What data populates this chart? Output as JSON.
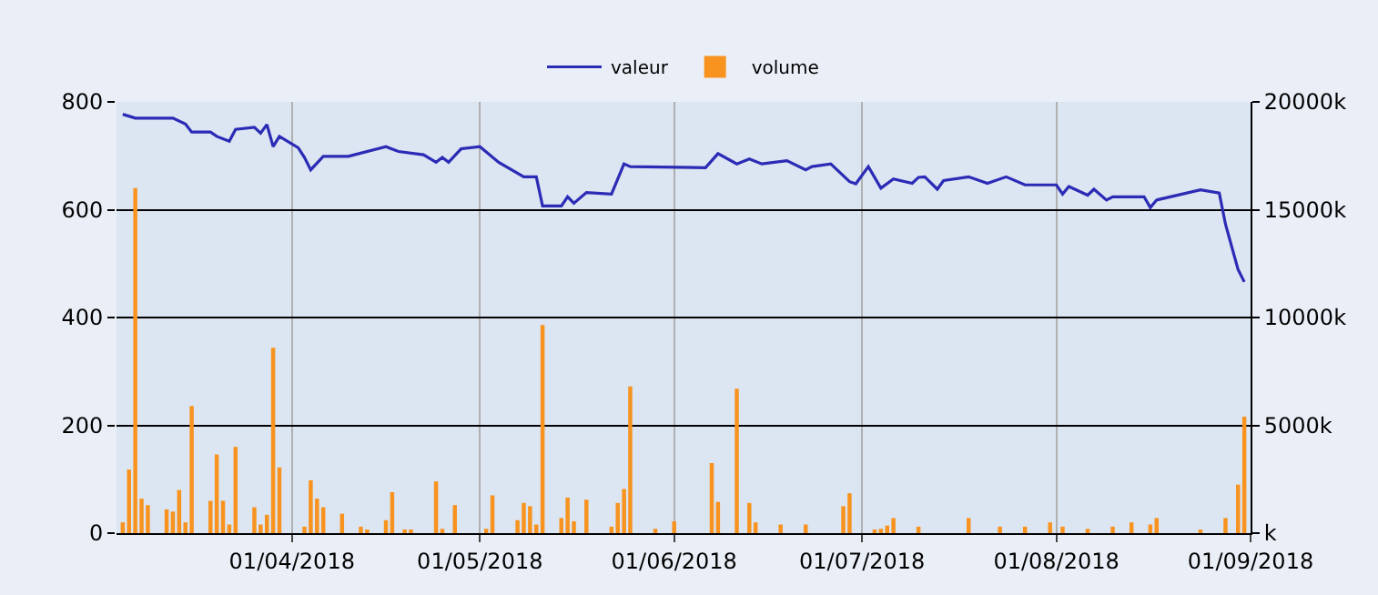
{
  "chart_data": {
    "type": "line",
    "series": [
      {
        "name": "valeur",
        "color": "#2b2bb5",
        "x": [
          "2018-03-05",
          "2018-03-07",
          "2018-03-13",
          "2018-03-15",
          "2018-03-16",
          "2018-03-19",
          "2018-03-20",
          "2018-03-22",
          "2018-03-23",
          "2018-03-26",
          "2018-03-27",
          "2018-03-28",
          "2018-03-29",
          "2018-03-30",
          "2018-04-02",
          "2018-04-03",
          "2018-04-04",
          "2018-04-06",
          "2018-04-10",
          "2018-04-16",
          "2018-04-18",
          "2018-04-22",
          "2018-04-24",
          "2018-04-25",
          "2018-04-26",
          "2018-04-28",
          "2018-05-01",
          "2018-05-04",
          "2018-05-08",
          "2018-05-10",
          "2018-05-11",
          "2018-05-14",
          "2018-05-15",
          "2018-05-16",
          "2018-05-18",
          "2018-05-22",
          "2018-05-24",
          "2018-05-25",
          "2018-06-06",
          "2018-06-08",
          "2018-06-11",
          "2018-06-13",
          "2018-06-15",
          "2018-06-19",
          "2018-06-22",
          "2018-06-23",
          "2018-06-26",
          "2018-06-29",
          "2018-06-30",
          "2018-07-02",
          "2018-07-04",
          "2018-07-06",
          "2018-07-09",
          "2018-07-10",
          "2018-07-11",
          "2018-07-13",
          "2018-07-14",
          "2018-07-18",
          "2018-07-21",
          "2018-07-24",
          "2018-07-27",
          "2018-08-01",
          "2018-08-02",
          "2018-08-03",
          "2018-08-06",
          "2018-08-07",
          "2018-08-09",
          "2018-08-10",
          "2018-08-15",
          "2018-08-16",
          "2018-08-17",
          "2018-08-24",
          "2018-08-27",
          "2018-08-28",
          "2018-08-30",
          "2018-08-31"
        ],
        "values": [
          777,
          770,
          770,
          759,
          744,
          744,
          736,
          727,
          749,
          753,
          742,
          758,
          717,
          736,
          715,
          697,
          674,
          699,
          699,
          717,
          708,
          702,
          688,
          697,
          688,
          713,
          717,
          688,
          661,
          661,
          607,
          607,
          624,
          612,
          632,
          629,
          685,
          680,
          678,
          704,
          685,
          694,
          685,
          691,
          674,
          680,
          685,
          652,
          648,
          680,
          640,
          657,
          649,
          660,
          661,
          638,
          654,
          661,
          649,
          661,
          646,
          646,
          629,
          643,
          627,
          638,
          618,
          624,
          624,
          604,
          618,
          637,
          631,
          573,
          489,
          466
        ]
      },
      {
        "name": "volume",
        "type": "bar",
        "axis": "y2",
        "color": "#f7931e",
        "x": [
          "2018-03-05",
          "2018-03-06",
          "2018-03-07",
          "2018-03-08",
          "2018-03-09",
          "2018-03-12",
          "2018-03-13",
          "2018-03-14",
          "2018-03-15",
          "2018-03-16",
          "2018-03-19",
          "2018-03-20",
          "2018-03-21",
          "2018-03-22",
          "2018-03-23",
          "2018-03-26",
          "2018-03-27",
          "2018-03-28",
          "2018-03-29",
          "2018-03-30",
          "2018-04-03",
          "2018-04-04",
          "2018-04-05",
          "2018-04-06",
          "2018-04-09",
          "2018-04-12",
          "2018-04-13",
          "2018-04-16",
          "2018-04-17",
          "2018-04-19",
          "2018-04-20",
          "2018-04-24",
          "2018-04-25",
          "2018-04-27",
          "2018-05-02",
          "2018-05-03",
          "2018-05-07",
          "2018-05-08",
          "2018-05-09",
          "2018-05-10",
          "2018-05-11",
          "2018-05-14",
          "2018-05-15",
          "2018-05-16",
          "2018-05-18",
          "2018-05-22",
          "2018-05-23",
          "2018-05-24",
          "2018-05-25",
          "2018-05-29",
          "2018-06-01",
          "2018-06-07",
          "2018-06-08",
          "2018-06-11",
          "2018-06-13",
          "2018-06-14",
          "2018-06-18",
          "2018-06-22",
          "2018-06-28",
          "2018-06-29",
          "2018-07-03",
          "2018-07-04",
          "2018-07-05",
          "2018-07-06",
          "2018-07-10",
          "2018-07-18",
          "2018-07-23",
          "2018-07-27",
          "2018-07-31",
          "2018-08-02",
          "2018-08-06",
          "2018-08-10",
          "2018-08-13",
          "2018-08-16",
          "2018-08-17",
          "2018-08-24",
          "2018-08-28",
          "2018-08-30",
          "2018-08-31"
        ],
        "values": [
          500,
          2950,
          16000,
          1600,
          1300,
          1100,
          1000,
          2000,
          500,
          5900,
          1500,
          3650,
          1500,
          400,
          4000,
          1200,
          400,
          850,
          8600,
          3050,
          300,
          2450,
          1600,
          1200,
          900,
          300,
          100,
          600,
          1900,
          100,
          150,
          2400,
          200,
          1300,
          200,
          1750,
          600,
          1400,
          1250,
          400,
          9650,
          700,
          1650,
          550,
          1550,
          300,
          1400,
          2050,
          6800,
          200,
          550,
          3250,
          1450,
          6700,
          1400,
          500,
          400,
          400,
          1250,
          1850,
          150,
          200,
          350,
          700,
          300,
          700,
          300,
          300,
          500,
          300,
          200,
          300,
          500,
          400,
          700,
          100,
          700,
          2250,
          5400
        ]
      }
    ],
    "xlim": [
      "2018-03-04",
      "2018-09-01"
    ],
    "xticks": [
      {
        "value": "2018-04-01",
        "label": "01/04/2018"
      },
      {
        "value": "2018-05-01",
        "label": "01/05/2018"
      },
      {
        "value": "2018-06-01",
        "label": "01/06/2018"
      },
      {
        "value": "2018-07-01",
        "label": "01/07/2018"
      },
      {
        "value": "2018-08-01",
        "label": "01/08/2018"
      },
      {
        "value": "2018-09-01",
        "label": "01/09/2018"
      }
    ],
    "ylim": [
      0,
      800
    ],
    "yticks": [
      0,
      200,
      400,
      600,
      800
    ],
    "y2lim": [
      0,
      20000
    ],
    "y2ticks": [
      {
        "value": 0,
        "label": "k"
      },
      {
        "value": 5000,
        "label": "5000k"
      },
      {
        "value": 10000,
        "label": "10000k"
      },
      {
        "value": 15000,
        "label": "15000k"
      },
      {
        "value": 20000,
        "label": "20000k"
      }
    ],
    "grid": true,
    "legend": "top"
  }
}
